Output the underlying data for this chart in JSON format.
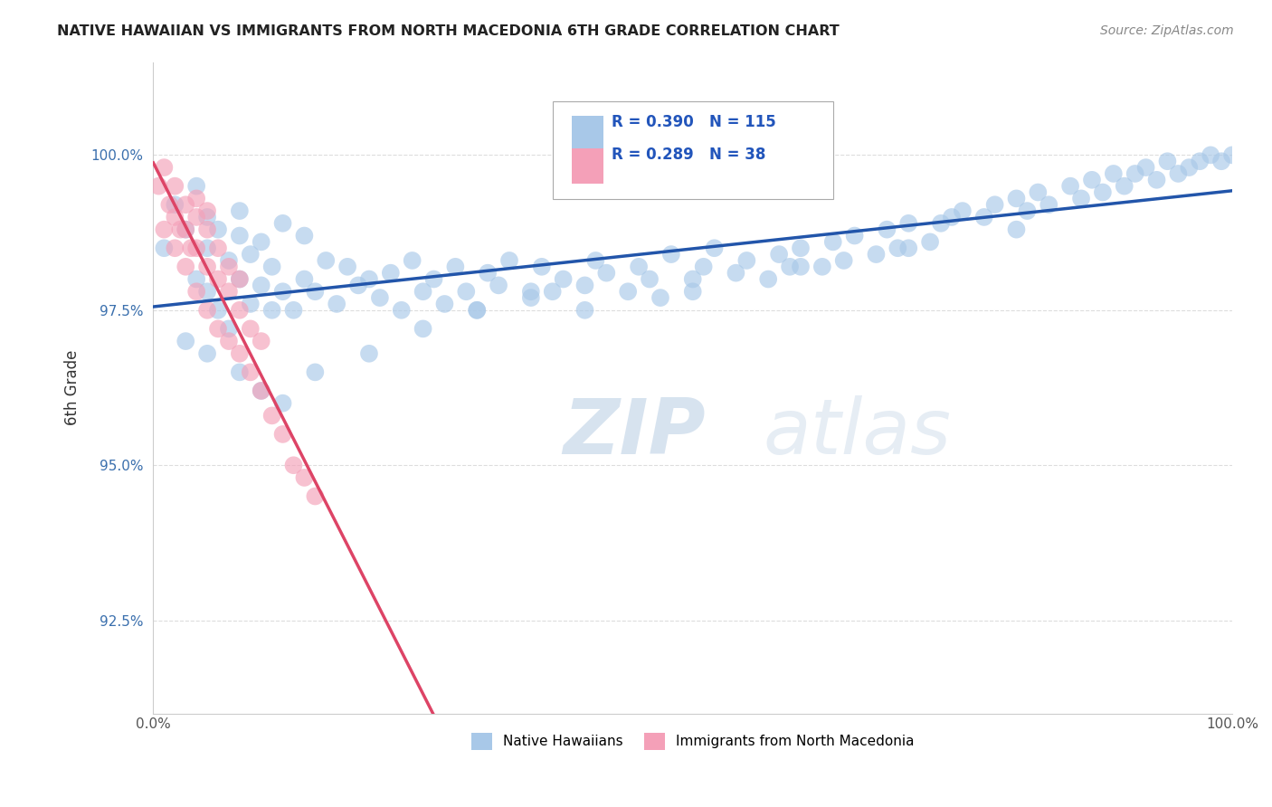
{
  "title": "NATIVE HAWAIIAN VS IMMIGRANTS FROM NORTH MACEDONIA 6TH GRADE CORRELATION CHART",
  "source": "Source: ZipAtlas.com",
  "ylabel": "6th Grade",
  "xlim": [
    0.0,
    100.0
  ],
  "ylim": [
    91.0,
    101.5
  ],
  "yticks": [
    92.5,
    95.0,
    97.5,
    100.0
  ],
  "ytick_labels": [
    "92.5%",
    "95.0%",
    "97.5%",
    "100.0%"
  ],
  "xtick_labels": [
    "0.0%",
    "100.0%"
  ],
  "blue_R": 0.39,
  "blue_N": 115,
  "pink_R": 0.289,
  "pink_N": 38,
  "blue_color": "#a8c8e8",
  "pink_color": "#f4a0b8",
  "blue_line_color": "#2255aa",
  "pink_line_color": "#dd4466",
  "legend_label_blue": "Native Hawaiians",
  "legend_label_pink": "Immigrants from North Macedonia",
  "watermark_zip": "ZIP",
  "watermark_atlas": "atlas",
  "background_color": "#ffffff",
  "grid_color": "#dddddd",
  "blue_scatter_x": [
    1,
    2,
    3,
    4,
    4,
    5,
    5,
    5,
    6,
    6,
    7,
    7,
    8,
    8,
    8,
    9,
    9,
    10,
    10,
    11,
    11,
    12,
    12,
    13,
    14,
    14,
    15,
    16,
    17,
    18,
    19,
    20,
    21,
    22,
    23,
    24,
    25,
    26,
    27,
    28,
    29,
    30,
    31,
    32,
    33,
    35,
    36,
    37,
    38,
    40,
    41,
    42,
    44,
    45,
    46,
    47,
    48,
    50,
    51,
    52,
    54,
    55,
    57,
    58,
    59,
    60,
    62,
    63,
    64,
    65,
    67,
    68,
    69,
    70,
    72,
    73,
    74,
    75,
    77,
    78,
    80,
    81,
    82,
    83,
    85,
    86,
    87,
    88,
    89,
    90,
    91,
    92,
    93,
    94,
    95,
    96,
    97,
    98,
    99,
    100,
    3,
    5,
    8,
    10,
    12,
    15,
    20,
    25,
    30,
    35,
    40,
    50,
    60,
    70,
    80
  ],
  "blue_scatter_y": [
    98.5,
    99.2,
    98.8,
    98.0,
    99.5,
    97.8,
    98.5,
    99.0,
    97.5,
    98.8,
    97.2,
    98.3,
    98.0,
    98.7,
    99.1,
    97.6,
    98.4,
    97.9,
    98.6,
    97.5,
    98.2,
    97.8,
    98.9,
    97.5,
    98.0,
    98.7,
    97.8,
    98.3,
    97.6,
    98.2,
    97.9,
    98.0,
    97.7,
    98.1,
    97.5,
    98.3,
    97.8,
    98.0,
    97.6,
    98.2,
    97.8,
    97.5,
    98.1,
    97.9,
    98.3,
    97.7,
    98.2,
    97.8,
    98.0,
    97.9,
    98.3,
    98.1,
    97.8,
    98.2,
    98.0,
    97.7,
    98.4,
    98.0,
    98.2,
    98.5,
    98.1,
    98.3,
    98.0,
    98.4,
    98.2,
    98.5,
    98.2,
    98.6,
    98.3,
    98.7,
    98.4,
    98.8,
    98.5,
    98.9,
    98.6,
    98.9,
    99.0,
    99.1,
    99.0,
    99.2,
    99.3,
    99.1,
    99.4,
    99.2,
    99.5,
    99.3,
    99.6,
    99.4,
    99.7,
    99.5,
    99.7,
    99.8,
    99.6,
    99.9,
    99.7,
    99.8,
    99.9,
    100.0,
    99.9,
    100.0,
    97.0,
    96.8,
    96.5,
    96.2,
    96.0,
    96.5,
    96.8,
    97.2,
    97.5,
    97.8,
    97.5,
    97.8,
    98.2,
    98.5,
    98.8
  ],
  "pink_scatter_x": [
    0.5,
    1,
    1,
    1.5,
    2,
    2,
    2,
    2.5,
    3,
    3,
    3,
    3.5,
    4,
    4,
    4,
    4,
    5,
    5,
    5,
    5,
    6,
    6,
    6,
    7,
    7,
    7,
    8,
    8,
    8,
    9,
    9,
    10,
    10,
    11,
    12,
    13,
    14,
    15
  ],
  "pink_scatter_y": [
    99.5,
    98.8,
    99.8,
    99.2,
    98.5,
    99.0,
    99.5,
    98.8,
    98.2,
    98.8,
    99.2,
    98.5,
    97.8,
    98.5,
    99.0,
    99.3,
    97.5,
    98.2,
    98.8,
    99.1,
    97.2,
    98.0,
    98.5,
    97.0,
    97.8,
    98.2,
    96.8,
    97.5,
    98.0,
    96.5,
    97.2,
    96.2,
    97.0,
    95.8,
    95.5,
    95.0,
    94.8,
    94.5
  ]
}
